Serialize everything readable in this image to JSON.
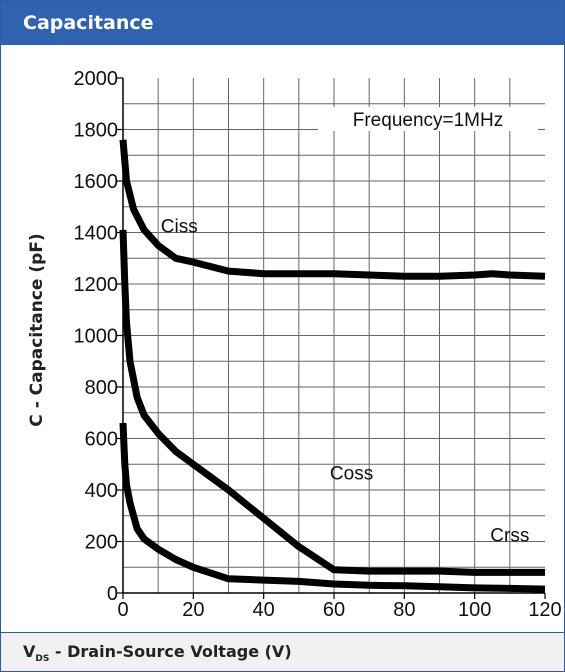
{
  "header": {
    "title": "Capacitance"
  },
  "chart_data": {
    "type": "line",
    "title": "Capacitance",
    "xlabel_prefix": "V",
    "xlabel_sub": "DS",
    "xlabel_suffix": " - Drain-Source Voltage (V)",
    "ylabel": "C - Capacitance (pF)",
    "xlim": [
      0,
      120
    ],
    "ylim": [
      0,
      2000
    ],
    "xticks": [
      0,
      20,
      40,
      60,
      80,
      100,
      120
    ],
    "yticks": [
      0,
      200,
      400,
      600,
      800,
      1000,
      1200,
      1400,
      1600,
      1800,
      2000
    ],
    "grid": true,
    "annotation": "Frequency=1MHz",
    "series": [
      {
        "name": "Ciss",
        "x": [
          0,
          1,
          3,
          6,
          10,
          15,
          20,
          30,
          40,
          50,
          60,
          70,
          80,
          90,
          100,
          105,
          110,
          120
        ],
        "y": [
          1760,
          1600,
          1490,
          1410,
          1350,
          1300,
          1285,
          1250,
          1240,
          1240,
          1240,
          1235,
          1230,
          1230,
          1235,
          1240,
          1235,
          1230
        ]
      },
      {
        "name": "Coss",
        "x": [
          0,
          0.5,
          1,
          2,
          4,
          6,
          10,
          15,
          20,
          30,
          40,
          50,
          60,
          70,
          80,
          90,
          100,
          110,
          120
        ],
        "y": [
          1410,
          1200,
          1050,
          900,
          760,
          690,
          620,
          550,
          500,
          400,
          290,
          180,
          90,
          85,
          85,
          85,
          80,
          80,
          80
        ]
      },
      {
        "name": "Crss",
        "x": [
          0,
          0.5,
          1,
          2,
          4,
          6,
          10,
          15,
          20,
          30,
          40,
          50,
          60,
          70,
          80,
          90,
          100,
          110,
          120
        ],
        "y": [
          660,
          500,
          420,
          350,
          250,
          210,
          170,
          130,
          100,
          55,
          50,
          45,
          35,
          30,
          28,
          24,
          20,
          18,
          15
        ]
      }
    ],
    "labels": [
      {
        "text": "Ciss",
        "x": 16,
        "y": 1400
      },
      {
        "text": "Coss",
        "x": 65,
        "y": 440
      },
      {
        "text": "Crss",
        "x": 110,
        "y": 200
      }
    ]
  }
}
